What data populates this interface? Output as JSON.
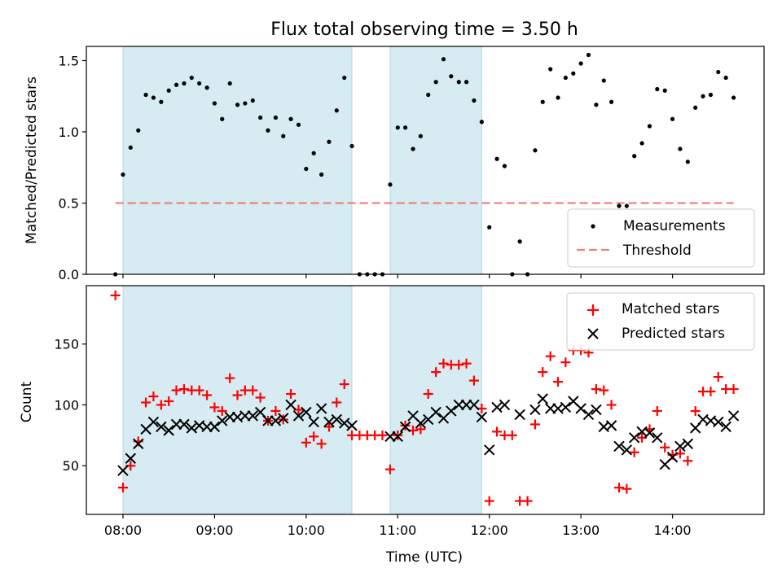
{
  "chart_data": [
    {
      "type": "scatter",
      "title": "Flux total observing time = 3.50 h",
      "xlabel": "",
      "ylabel": "Matched/Predicted stars",
      "xlim": [
        7.6,
        15.0
      ],
      "ylim": [
        0,
        1.6
      ],
      "yticks": [
        0.0,
        0.5,
        1.0,
        1.5
      ],
      "ytick_labels": [
        "0.0",
        "0.5",
        "1.0",
        "1.5"
      ],
      "shaded_regions": [
        [
          8.0,
          10.5
        ],
        [
          10.917,
          11.917
        ]
      ],
      "shade_color": "#add8e6",
      "legend_position": "lower-right",
      "threshold": {
        "name": "Threshold",
        "value": 0.5,
        "x_range": [
          7.917,
          14.667
        ],
        "color": "#f08080"
      },
      "series": [
        {
          "name": "Measurements",
          "color": "#000000",
          "x": [
            7.917,
            8.0,
            8.083,
            8.167,
            8.25,
            8.333,
            8.417,
            8.5,
            8.583,
            8.667,
            8.75,
            8.833,
            8.917,
            9.0,
            9.083,
            9.167,
            9.25,
            9.333,
            9.417,
            9.5,
            9.583,
            9.667,
            9.75,
            9.833,
            9.917,
            10.0,
            10.083,
            10.167,
            10.25,
            10.333,
            10.417,
            10.5,
            10.583,
            10.667,
            10.75,
            10.833,
            10.917,
            11.0,
            11.083,
            11.167,
            11.25,
            11.333,
            11.417,
            11.5,
            11.583,
            11.667,
            11.75,
            11.833,
            11.917,
            12.0,
            12.083,
            12.167,
            12.25,
            12.333,
            12.417,
            12.5,
            12.583,
            12.667,
            12.75,
            12.833,
            12.917,
            13.0,
            13.083,
            13.167,
            13.25,
            13.333,
            13.417,
            13.5,
            13.583,
            13.667,
            13.75,
            13.833,
            13.917,
            14.0,
            14.083,
            14.167,
            14.25,
            14.333,
            14.417,
            14.5,
            14.583,
            14.667
          ],
          "values": [
            0.0,
            0.7,
            0.89,
            1.01,
            1.26,
            1.24,
            1.21,
            1.29,
            1.33,
            1.34,
            1.38,
            1.34,
            1.31,
            1.2,
            1.09,
            1.34,
            1.19,
            1.2,
            1.22,
            1.1,
            1.01,
            1.1,
            0.97,
            1.09,
            1.05,
            0.74,
            0.85,
            0.7,
            0.93,
            1.15,
            1.38,
            0.9,
            0.0,
            0.0,
            0.0,
            0.0,
            0.63,
            1.03,
            1.03,
            0.88,
            0.97,
            1.26,
            1.35,
            1.51,
            1.39,
            1.35,
            1.35,
            1.22,
            1.07,
            0.33,
            0.81,
            0.76,
            0.0,
            0.23,
            0.0,
            0.87,
            1.21,
            1.44,
            1.24,
            1.38,
            1.41,
            1.48,
            1.54,
            1.19,
            1.36,
            1.21,
            0.48,
            0.48,
            0.83,
            0.92,
            1.04,
            1.3,
            1.29,
            1.09,
            0.88,
            0.79,
            1.17,
            1.25,
            1.26,
            1.42,
            1.38,
            1.24
          ]
        }
      ]
    },
    {
      "type": "scatter",
      "title": "",
      "xlabel": "Time (UTC)",
      "ylabel": "Count",
      "xlim": [
        7.6,
        15.0
      ],
      "ylim": [
        10,
        198
      ],
      "xticks": [
        8,
        9,
        10,
        11,
        12,
        13,
        14
      ],
      "xtick_labels": [
        "08:00",
        "09:00",
        "10:00",
        "11:00",
        "12:00",
        "13:00",
        "14:00"
      ],
      "yticks": [
        50,
        100,
        150
      ],
      "ytick_labels": [
        "50",
        "100",
        "150"
      ],
      "shaded_regions": [
        [
          8.0,
          10.5
        ],
        [
          10.917,
          11.917
        ]
      ],
      "shade_color": "#add8e6",
      "legend_position": "top-right",
      "series": [
        {
          "name": "Matched stars",
          "marker": "+",
          "color": "#ff0000",
          "x": [
            7.917,
            8.0,
            8.083,
            8.167,
            8.25,
            8.333,
            8.417,
            8.5,
            8.583,
            8.667,
            8.75,
            8.833,
            8.917,
            9.0,
            9.083,
            9.167,
            9.25,
            9.333,
            9.417,
            9.5,
            9.583,
            9.667,
            9.75,
            9.833,
            9.917,
            10.0,
            10.083,
            10.167,
            10.25,
            10.333,
            10.417,
            10.5,
            10.583,
            10.667,
            10.75,
            10.833,
            10.917,
            11.0,
            11.083,
            11.167,
            11.25,
            11.333,
            11.417,
            11.5,
            11.583,
            11.667,
            11.75,
            11.833,
            11.917,
            12.0,
            12.083,
            12.167,
            12.25,
            12.333,
            12.417,
            12.5,
            12.583,
            12.667,
            12.75,
            12.833,
            12.917,
            13.0,
            13.083,
            13.167,
            13.25,
            13.333,
            13.417,
            13.5,
            13.583,
            13.667,
            13.75,
            13.833,
            13.917,
            14.0,
            14.083,
            14.167,
            14.25,
            14.333,
            14.417,
            14.5,
            14.583,
            14.667
          ],
          "values": [
            190,
            32,
            50,
            70,
            102,
            107,
            100,
            103,
            112,
            113,
            112,
            112,
            108,
            98,
            95,
            122,
            108,
            112,
            112,
            106,
            87,
            95,
            88,
            109,
            96,
            69,
            74,
            68,
            82,
            102,
            117,
            75,
            75,
            75,
            75,
            75,
            47,
            75,
            83,
            79,
            80,
            109,
            127,
            134,
            133,
            133,
            134,
            120,
            97,
            21,
            78,
            75,
            75,
            21,
            21,
            84,
            127,
            140,
            119,
            135,
            145,
            145,
            143,
            113,
            112,
            100,
            32,
            31,
            61,
            73,
            80,
            95,
            65,
            59,
            60,
            54,
            95,
            111,
            111,
            123,
            113,
            113
          ]
        },
        {
          "name": "Predicted stars",
          "marker": "x",
          "color": "#000000",
          "x": [
            8.0,
            8.083,
            8.167,
            8.25,
            8.333,
            8.417,
            8.5,
            8.583,
            8.667,
            8.75,
            8.833,
            8.917,
            9.0,
            9.083,
            9.167,
            9.25,
            9.333,
            9.417,
            9.5,
            9.583,
            9.667,
            9.75,
            9.833,
            9.917,
            10.0,
            10.083,
            10.167,
            10.25,
            10.333,
            10.417,
            10.5,
            10.917,
            11.0,
            11.083,
            11.167,
            11.25,
            11.333,
            11.417,
            11.5,
            11.583,
            11.667,
            11.75,
            11.833,
            11.917,
            12.0,
            12.083,
            12.167,
            12.333,
            12.5,
            12.583,
            12.667,
            12.75,
            12.833,
            12.917,
            13.0,
            13.083,
            13.167,
            13.25,
            13.333,
            13.417,
            13.5,
            13.583,
            13.667,
            13.75,
            13.833,
            13.917,
            14.0,
            14.083,
            14.167,
            14.25,
            14.333,
            14.417,
            14.5,
            14.583,
            14.667
          ],
          "values": [
            46,
            56,
            68,
            80,
            86,
            82,
            79,
            84,
            84,
            81,
            83,
            82,
            82,
            87,
            90,
            90,
            91,
            91,
            94,
            87,
            87,
            89,
            100,
            91,
            94,
            86,
            97,
            86,
            88,
            85,
            83,
            74,
            74,
            82,
            91,
            85,
            88,
            94,
            89,
            95,
            100,
            100,
            100,
            90,
            63,
            98,
            100,
            92,
            96,
            105,
            97,
            97,
            98,
            103,
            97,
            92,
            96,
            82,
            83,
            66,
            63,
            73,
            78,
            77,
            73,
            51,
            57,
            66,
            68,
            81,
            88,
            87,
            86,
            82,
            91
          ]
        }
      ]
    }
  ]
}
